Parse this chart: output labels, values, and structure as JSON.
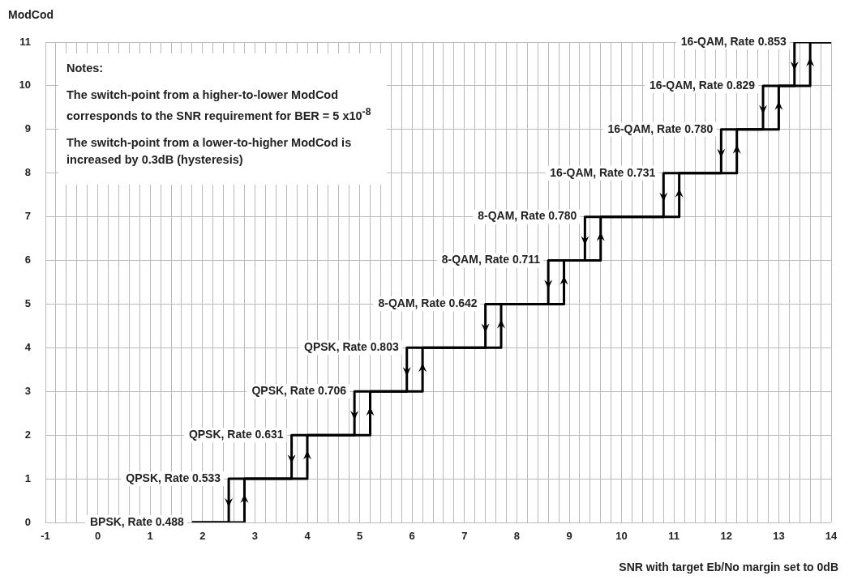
{
  "chart_data": {
    "type": "line",
    "xlabel": "SNR with target Eb/No margin set to 0dB",
    "ylabel": "ModCod",
    "xlim": [
      -1,
      14
    ],
    "ylim": [
      0,
      11
    ],
    "xticks": [
      -1,
      {
        "value": -0.8,
        "label": null
      },
      {
        "value": -0.6,
        "label": null
      },
      {
        "value": -0.4,
        "label": null
      },
      {
        "value": -0.2,
        "label": null
      },
      0,
      {
        "value": 0.2,
        "label": null
      },
      {
        "value": 0.4,
        "label": null
      },
      {
        "value": 0.6,
        "label": null
      },
      {
        "value": 0.8,
        "label": null
      },
      1,
      {
        "value": 1.2,
        "label": null
      },
      {
        "value": 1.4,
        "label": null
      },
      {
        "value": 1.6,
        "label": null
      },
      {
        "value": 1.8,
        "label": null
      },
      2,
      {
        "value": 2.2,
        "label": null
      },
      {
        "value": 2.4,
        "label": null
      },
      {
        "value": 2.6,
        "label": null
      },
      {
        "value": 2.8,
        "label": null
      },
      3,
      {
        "value": 3.2,
        "label": null
      },
      {
        "value": 3.4,
        "label": null
      },
      {
        "value": 3.6,
        "label": null
      },
      {
        "value": 3.8,
        "label": null
      },
      4,
      {
        "value": 4.2,
        "label": null
      },
      {
        "value": 4.4,
        "label": null
      },
      {
        "value": 4.6,
        "label": null
      },
      {
        "value": 4.8,
        "label": null
      },
      5,
      {
        "value": 5.2,
        "label": null
      },
      {
        "value": 5.4,
        "label": null
      },
      {
        "value": 5.6,
        "label": null
      },
      {
        "value": 5.8,
        "label": null
      },
      6,
      {
        "value": 6.2,
        "label": null
      },
      {
        "value": 6.4,
        "label": null
      },
      {
        "value": 6.6,
        "label": null
      },
      {
        "value": 6.8,
        "label": null
      },
      7,
      {
        "value": 7.2,
        "label": null
      },
      {
        "value": 7.4,
        "label": null
      },
      {
        "value": 7.6,
        "label": null
      },
      {
        "value": 7.8,
        "label": null
      },
      8,
      {
        "value": 8.2,
        "label": null
      },
      {
        "value": 8.4,
        "label": null
      },
      {
        "value": 8.6,
        "label": null
      },
      {
        "value": 8.8,
        "label": null
      },
      9,
      {
        "value": 9.2,
        "label": null
      },
      {
        "value": 9.4,
        "label": null
      },
      {
        "value": 9.6,
        "label": null
      },
      {
        "value": 9.8,
        "label": null
      },
      10,
      {
        "value": 10.2,
        "label": null
      },
      {
        "value": 10.4,
        "label": null
      },
      {
        "value": 10.6,
        "label": null
      },
      {
        "value": 10.8,
        "label": null
      },
      11,
      {
        "value": 11.2,
        "label": null
      },
      {
        "value": 11.4,
        "label": null
      },
      {
        "value": 11.6,
        "label": null
      },
      {
        "value": 11.8,
        "label": null
      },
      12,
      {
        "value": 12.2,
        "label": null
      },
      {
        "value": 12.4,
        "label": null
      },
      {
        "value": 12.6,
        "label": null
      },
      {
        "value": 12.8,
        "label": null
      },
      13,
      {
        "value": 13.2,
        "label": null
      },
      {
        "value": 13.4,
        "label": null
      },
      {
        "value": 13.6,
        "label": null
      },
      {
        "value": 13.8,
        "label": null
      },
      14
    ],
    "yticks": [
      0,
      1,
      2,
      3,
      4,
      5,
      6,
      7,
      8,
      9,
      10,
      11
    ],
    "grid": true,
    "marker": "none",
    "line_style": "solid",
    "series": [
      {
        "color": "#000000",
        "x": [
          1.8,
          2.8,
          2.8,
          4.0,
          4.0,
          5.2,
          5.2,
          6.2,
          6.2,
          7.7,
          7.7,
          8.9,
          8.9,
          9.6,
          9.6,
          11.1,
          11.1,
          12.2,
          12.2,
          13.0,
          13.0,
          13.6,
          13.6,
          14
        ],
        "values": [
          0,
          0,
          1,
          1,
          2,
          2,
          3,
          3,
          4,
          4,
          5,
          5,
          6,
          6,
          7,
          7,
          8,
          8,
          9,
          9,
          10,
          10,
          11,
          11
        ]
      },
      {
        "color": "#000000",
        "x": [
          14,
          13.3,
          13.3,
          12.7,
          12.7,
          11.9,
          11.9,
          10.8,
          10.8,
          9.3,
          9.3,
          8.6,
          8.6,
          7.4,
          7.4,
          5.9,
          5.9,
          4.9,
          4.9,
          3.7,
          3.7,
          2.5,
          2.5,
          1.8
        ],
        "values": [
          11,
          11,
          10,
          10,
          9,
          9,
          8,
          8,
          7,
          7,
          6,
          6,
          5,
          5,
          4,
          4,
          3,
          3,
          2,
          2,
          1,
          1,
          0,
          0
        ]
      }
    ],
    "annotations": [
      "Notes:",
      "The switch-point from a higher-to-lower ModCod corresponds to the SNR requirement for BER = 5 x10$^{-8}$",
      "The switch-point from a lower-to-higher ModCod is increased by 0.3dB (hysteresis)",
      {
        "text": "BPSK, Rate 0.488",
        "x": 1.8,
        "y": 0
      },
      {
        "text": "QPSK, Rate 0.533",
        "x": 2.5,
        "y": 1
      },
      {
        "text": "QPSK, Rate 0.631",
        "x": 3.7,
        "y": 2
      },
      {
        "text": "QPSK, Rate 0.706",
        "x": 4.9,
        "y": 3
      },
      {
        "text": "QPSK, Rate 0.803",
        "x": 5.9,
        "y": 4
      },
      {
        "text": "8-QAM, Rate 0.642",
        "x": 7.4,
        "y": 5
      },
      {
        "text": "8-QAM, Rate 0.711",
        "x": 8.6,
        "y": 6
      },
      {
        "text": "8-QAM, Rate 0.780",
        "x": 9.3,
        "y": 7
      },
      {
        "text": "16-QAM, Rate 0.731",
        "x": 10.8,
        "y": 8
      },
      {
        "text": "16-QAM, Rate 0.780",
        "x": 11.9,
        "y": 9
      },
      {
        "text": "16-QAM, Rate 0.829",
        "x": 12.7,
        "y": 10
      },
      {
        "text": "16-QAM, Rate 0.853",
        "x": 13.3,
        "y": 11
      }
    ]
  }
}
